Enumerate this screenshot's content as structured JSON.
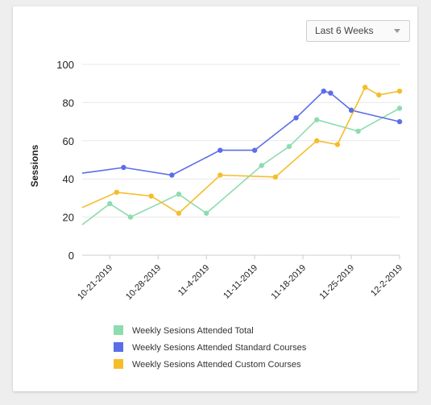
{
  "filter": {
    "selected": "Last 6 Weeks",
    "icon": "chevron-down-icon"
  },
  "chart_data": {
    "type": "line",
    "ylabel": "Sessions",
    "ylim": [
      0,
      100
    ],
    "yticks": [
      0,
      20,
      40,
      60,
      80,
      100
    ],
    "xlim": [
      "2019-10-17",
      "2019-12-02"
    ],
    "xticks": [
      "10-21-2019",
      "10-28-2019",
      "11-4-2019",
      "11-11-2019",
      "11-18-2019",
      "11-25-2019",
      "12-2-2019"
    ],
    "grid": true,
    "legend_position": "bottom",
    "series": [
      {
        "name": "Weekly Sesions Attended Total",
        "color": "#8ddcaf",
        "x": [
          "2019-10-17",
          "2019-10-21",
          "2019-10-24",
          "2019-10-31",
          "2019-11-04",
          "2019-11-12",
          "2019-11-16",
          "2019-11-20",
          "2019-11-26",
          "2019-12-02"
        ],
        "y": [
          16,
          27,
          20,
          32,
          22,
          47,
          57,
          71,
          65,
          77
        ]
      },
      {
        "name": "Weekly Sesions Attended Standard Courses",
        "color": "#5b6ee8",
        "x": [
          "2019-10-17",
          "2019-10-23",
          "2019-10-30",
          "2019-11-06",
          "2019-11-11",
          "2019-11-17",
          "2019-11-21",
          "2019-11-22",
          "2019-11-25",
          "2019-12-02"
        ],
        "y": [
          43,
          46,
          42,
          55,
          55,
          72,
          86,
          85,
          76,
          70
        ]
      },
      {
        "name": "Weekly Sesions Attended Custom Courses",
        "color": "#f6bd2a",
        "x": [
          "2019-10-17",
          "2019-10-22",
          "2019-10-27",
          "2019-10-31",
          "2019-11-06",
          "2019-11-14",
          "2019-11-20",
          "2019-11-23",
          "2019-11-27",
          "2019-11-29",
          "2019-12-02"
        ],
        "y": [
          25,
          33,
          31,
          22,
          42,
          41,
          60,
          58,
          88,
          84,
          86
        ]
      }
    ]
  }
}
